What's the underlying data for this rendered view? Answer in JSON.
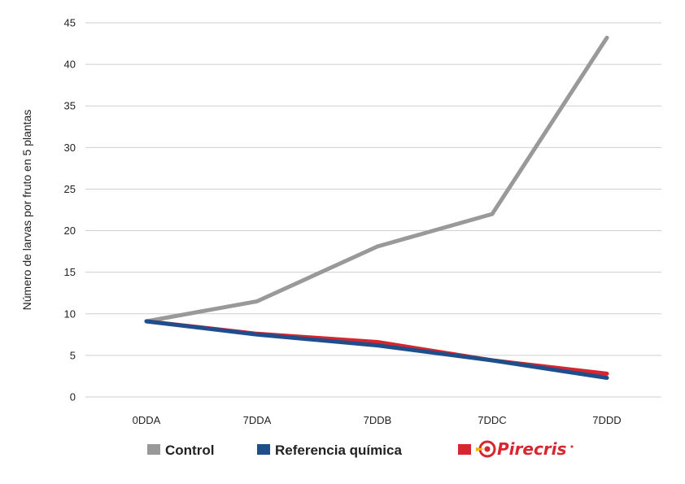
{
  "chart_data": {
    "type": "line",
    "title": "",
    "ylabel": "Número de larvas por fruto en 5 plantas",
    "xlabel": "",
    "categories": [
      "0DDA",
      "7DDA",
      "7DDB",
      "7DDC",
      "7DDD"
    ],
    "ylim": [
      0,
      45
    ],
    "yticks": [
      0,
      5,
      10,
      15,
      20,
      25,
      30,
      35,
      40,
      45
    ],
    "grid": true,
    "legend_position": "bottom",
    "series": [
      {
        "name": "Control",
        "color": "#999999",
        "values": [
          9.1,
          11.5,
          18.1,
          22.0,
          43.2
        ]
      },
      {
        "name": "Pirecris",
        "color": "#d8262f",
        "values": [
          9.1,
          7.6,
          6.6,
          4.4,
          2.8
        ],
        "legend_logo": true
      },
      {
        "name": "Referencia química",
        "color": "#1f4e8c",
        "values": [
          9.1,
          7.5,
          6.2,
          4.4,
          2.3
        ]
      }
    ],
    "legend_order": [
      "Control",
      "Referencia química",
      "Pirecris"
    ]
  }
}
